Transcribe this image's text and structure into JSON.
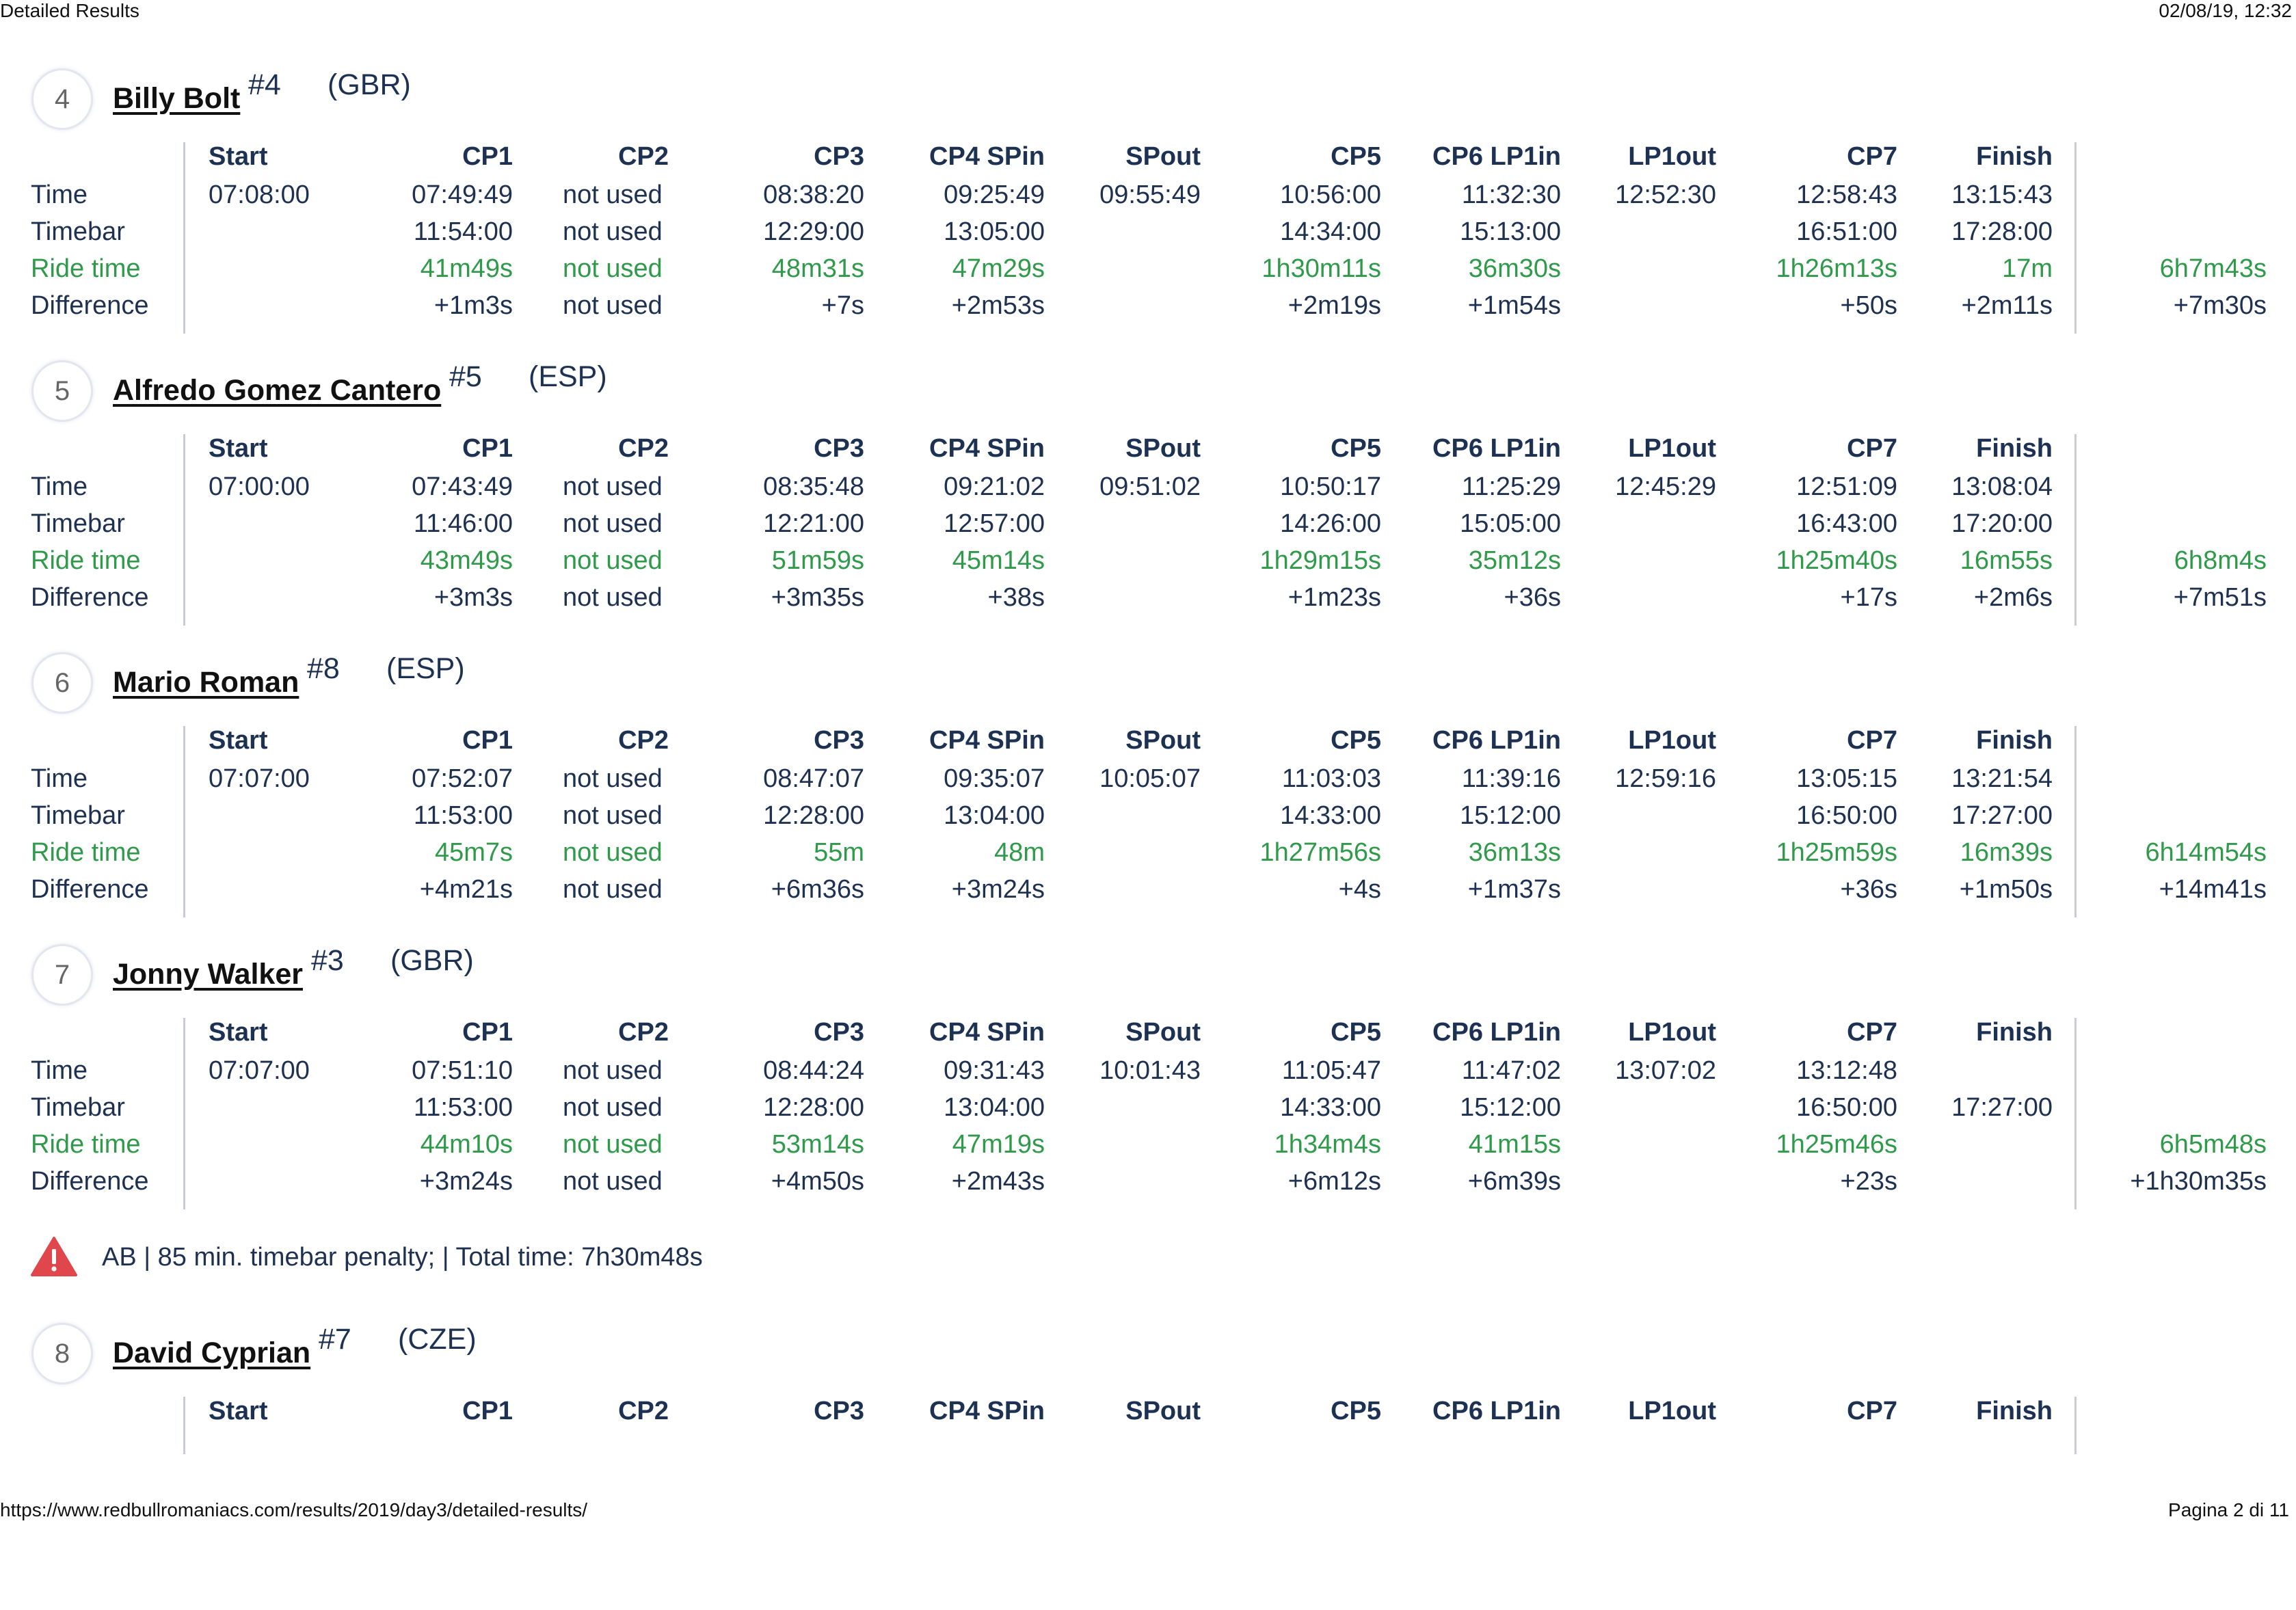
{
  "header": {
    "title": "Detailed Results",
    "datetime": "02/08/19, 12:32"
  },
  "footer": {
    "url": "https://www.redbullromaniacs.com/results/2019/day3/detailed-results/",
    "page": "Pagina 2 di 11"
  },
  "columns": [
    "Start",
    "CP1",
    "CP2",
    "CP3",
    "CP4 SPin",
    "SPout",
    "CP5",
    "CP6 LP1in",
    "LP1out",
    "CP7",
    "Finish"
  ],
  "row_labels": [
    "Time",
    "Timebar",
    "Ride time",
    "Difference"
  ],
  "riders": [
    {
      "position": "4",
      "name": "Billy Bolt",
      "number": "#4",
      "nation": "(GBR)",
      "time": [
        "07:08:00",
        "07:49:49",
        "not used",
        "08:38:20",
        "09:25:49",
        "09:55:49",
        "10:56:00",
        "11:32:30",
        "12:52:30",
        "12:58:43",
        "13:15:43"
      ],
      "timebar": [
        "",
        "11:54:00",
        "not used",
        "12:29:00",
        "13:05:00",
        "",
        "14:34:00",
        "15:13:00",
        "",
        "16:51:00",
        "17:28:00"
      ],
      "ride_time": [
        "",
        "41m49s",
        "not used",
        "48m31s",
        "47m29s",
        "",
        "1h30m11s",
        "36m30s",
        "",
        "1h26m13s",
        "17m"
      ],
      "ride_time_total": "6h7m43s",
      "difference": [
        "",
        "+1m3s",
        "not used",
        "+7s",
        "+2m53s",
        "",
        "+2m19s",
        "+1m54s",
        "",
        "+50s",
        "+2m11s"
      ],
      "difference_total": "+7m30s"
    },
    {
      "position": "5",
      "name": "Alfredo Gomez Cantero",
      "number": "#5",
      "nation": "(ESP)",
      "time": [
        "07:00:00",
        "07:43:49",
        "not used",
        "08:35:48",
        "09:21:02",
        "09:51:02",
        "10:50:17",
        "11:25:29",
        "12:45:29",
        "12:51:09",
        "13:08:04"
      ],
      "timebar": [
        "",
        "11:46:00",
        "not used",
        "12:21:00",
        "12:57:00",
        "",
        "14:26:00",
        "15:05:00",
        "",
        "16:43:00",
        "17:20:00"
      ],
      "ride_time": [
        "",
        "43m49s",
        "not used",
        "51m59s",
        "45m14s",
        "",
        "1h29m15s",
        "35m12s",
        "",
        "1h25m40s",
        "16m55s"
      ],
      "ride_time_total": "6h8m4s",
      "difference": [
        "",
        "+3m3s",
        "not used",
        "+3m35s",
        "+38s",
        "",
        "+1m23s",
        "+36s",
        "",
        "+17s",
        "+2m6s"
      ],
      "difference_total": "+7m51s"
    },
    {
      "position": "6",
      "name": "Mario Roman",
      "number": "#8",
      "nation": "(ESP)",
      "time": [
        "07:07:00",
        "07:52:07",
        "not used",
        "08:47:07",
        "09:35:07",
        "10:05:07",
        "11:03:03",
        "11:39:16",
        "12:59:16",
        "13:05:15",
        "13:21:54"
      ],
      "timebar": [
        "",
        "11:53:00",
        "not used",
        "12:28:00",
        "13:04:00",
        "",
        "14:33:00",
        "15:12:00",
        "",
        "16:50:00",
        "17:27:00"
      ],
      "ride_time": [
        "",
        "45m7s",
        "not used",
        "55m",
        "48m",
        "",
        "1h27m56s",
        "36m13s",
        "",
        "1h25m59s",
        "16m39s"
      ],
      "ride_time_total": "6h14m54s",
      "difference": [
        "",
        "+4m21s",
        "not used",
        "+6m36s",
        "+3m24s",
        "",
        "+4s",
        "+1m37s",
        "",
        "+36s",
        "+1m50s"
      ],
      "difference_total": "+14m41s"
    },
    {
      "position": "7",
      "name": "Jonny Walker",
      "number": "#3",
      "nation": "(GBR)",
      "time": [
        "07:07:00",
        "07:51:10",
        "not used",
        "08:44:24",
        "09:31:43",
        "10:01:43",
        "11:05:47",
        "11:47:02",
        "13:07:02",
        "13:12:48",
        ""
      ],
      "timebar": [
        "",
        "11:53:00",
        "not used",
        "12:28:00",
        "13:04:00",
        "",
        "14:33:00",
        "15:12:00",
        "",
        "16:50:00",
        "17:27:00"
      ],
      "ride_time": [
        "",
        "44m10s",
        "not used",
        "53m14s",
        "47m19s",
        "",
        "1h34m4s",
        "41m15s",
        "",
        "1h25m46s",
        ""
      ],
      "ride_time_total": "6h5m48s",
      "difference": [
        "",
        "+3m24s",
        "not used",
        "+4m50s",
        "+2m43s",
        "",
        "+6m12s",
        "+6m39s",
        "",
        "+23s",
        ""
      ],
      "difference_total": "+1h30m35s"
    },
    {
      "position": "8",
      "name": "David Cyprian",
      "number": "#7",
      "nation": "(CZE)"
    }
  ],
  "penalty": {
    "icon": "warning-triangle-icon",
    "text": "AB | 85 min. timebar penalty; | Total time: 7h30m48s"
  },
  "colors": {
    "heading": "#1d3253",
    "text": "#1f3150",
    "ride_time": "#2f9a4a",
    "warning": "#e0474c"
  }
}
